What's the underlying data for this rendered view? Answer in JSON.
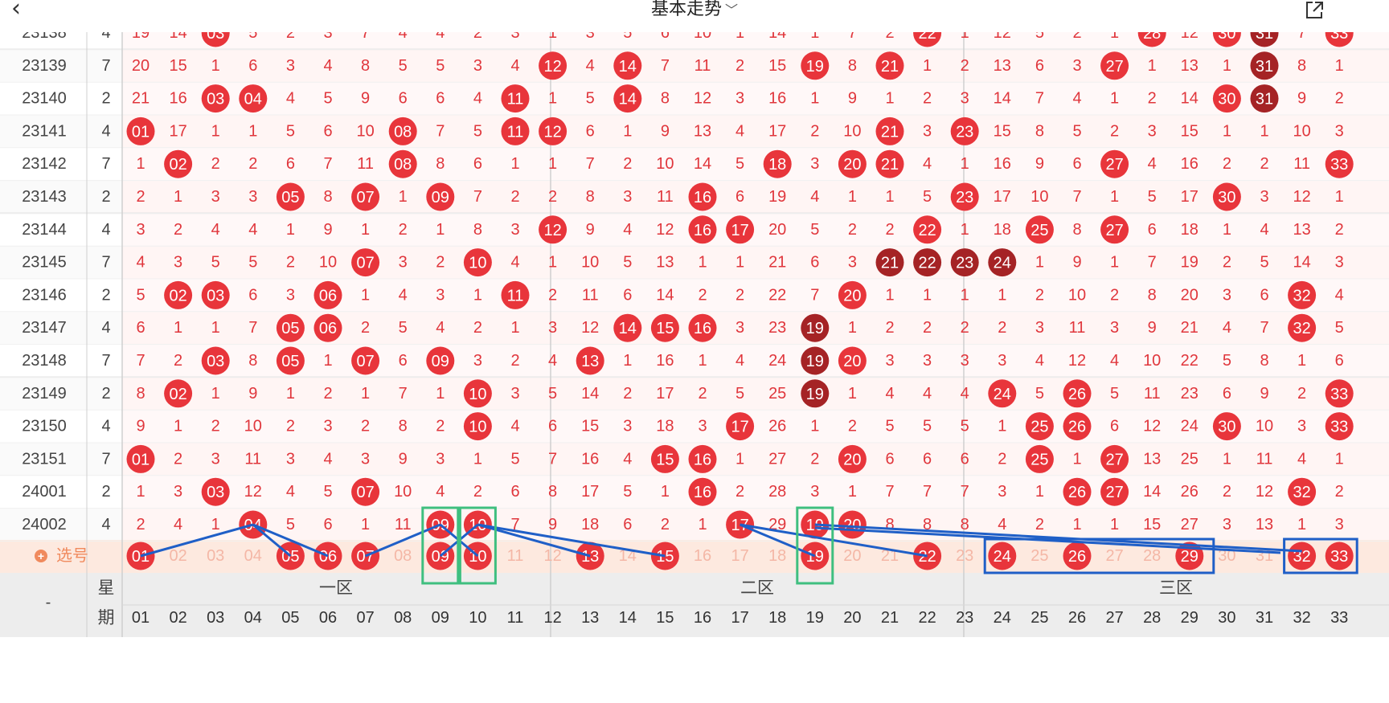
{
  "header": {
    "back_icon": "chevron-left-icon",
    "title": "基本走势",
    "title_dropdown_icon": "chevron-down-icon",
    "share_icon": "share-external-icon"
  },
  "issues": [
    "23138",
    "23139",
    "23140",
    "23141",
    "23142",
    "23143",
    "23144",
    "23145",
    "23146",
    "23147",
    "23148",
    "23149",
    "23150",
    "23151",
    "24001",
    "24002"
  ],
  "weekdays": [
    "4",
    "7",
    "2",
    "4",
    "7",
    "2",
    "4",
    "7",
    "2",
    "4",
    "7",
    "2",
    "4",
    "7",
    "2",
    "4"
  ],
  "cells": [
    [
      "19",
      "14",
      "03",
      "5",
      "2",
      "3",
      "7",
      "4",
      "4",
      "2",
      "3",
      "1",
      "3",
      "5",
      "6",
      "10",
      "1",
      "14",
      "1",
      "7",
      "2",
      "22",
      "1",
      "12",
      "5",
      "2",
      "1",
      "28",
      "12",
      "30",
      "31",
      "7",
      "33"
    ],
    [
      "20",
      "15",
      "1",
      "6",
      "3",
      "4",
      "8",
      "5",
      "5",
      "3",
      "4",
      "12",
      "4",
      "14",
      "7",
      "11",
      "2",
      "15",
      "19",
      "8",
      "21",
      "1",
      "2",
      "13",
      "6",
      "3",
      "27",
      "1",
      "13",
      "1",
      "31",
      "8",
      "1"
    ],
    [
      "21",
      "16",
      "03",
      "04",
      "4",
      "5",
      "9",
      "6",
      "6",
      "4",
      "11",
      "1",
      "5",
      "14",
      "8",
      "12",
      "3",
      "16",
      "1",
      "9",
      "1",
      "2",
      "3",
      "14",
      "7",
      "4",
      "1",
      "2",
      "14",
      "30",
      "31",
      "9",
      "2"
    ],
    [
      "01",
      "17",
      "1",
      "1",
      "5",
      "6",
      "10",
      "08",
      "7",
      "5",
      "11",
      "12",
      "6",
      "1",
      "9",
      "13",
      "4",
      "17",
      "2",
      "10",
      "21",
      "3",
      "23",
      "15",
      "8",
      "5",
      "2",
      "3",
      "15",
      "1",
      "1",
      "10",
      "3"
    ],
    [
      "1",
      "02",
      "2",
      "2",
      "6",
      "7",
      "11",
      "08",
      "8",
      "6",
      "1",
      "1",
      "7",
      "2",
      "10",
      "14",
      "5",
      "18",
      "3",
      "20",
      "21",
      "4",
      "1",
      "16",
      "9",
      "6",
      "27",
      "4",
      "16",
      "2",
      "2",
      "11",
      "33"
    ],
    [
      "2",
      "1",
      "3",
      "3",
      "05",
      "8",
      "07",
      "1",
      "09",
      "7",
      "2",
      "2",
      "8",
      "3",
      "11",
      "16",
      "6",
      "19",
      "4",
      "1",
      "1",
      "5",
      "23",
      "17",
      "10",
      "7",
      "1",
      "5",
      "17",
      "30",
      "3",
      "12",
      "1"
    ],
    [
      "3",
      "2",
      "4",
      "4",
      "1",
      "9",
      "1",
      "2",
      "1",
      "8",
      "3",
      "12",
      "9",
      "4",
      "12",
      "16",
      "17",
      "20",
      "5",
      "2",
      "2",
      "22",
      "1",
      "18",
      "25",
      "8",
      "27",
      "6",
      "18",
      "1",
      "4",
      "13",
      "2"
    ],
    [
      "4",
      "3",
      "5",
      "5",
      "2",
      "10",
      "07",
      "3",
      "2",
      "10",
      "4",
      "1",
      "10",
      "5",
      "13",
      "1",
      "1",
      "21",
      "6",
      "3",
      "21",
      "22",
      "23",
      "24",
      "1",
      "9",
      "1",
      "7",
      "19",
      "2",
      "5",
      "14",
      "3"
    ],
    [
      "5",
      "02",
      "03",
      "6",
      "3",
      "06",
      "1",
      "4",
      "3",
      "1",
      "11",
      "2",
      "11",
      "6",
      "14",
      "2",
      "2",
      "22",
      "7",
      "20",
      "1",
      "1",
      "1",
      "1",
      "2",
      "10",
      "2",
      "8",
      "20",
      "3",
      "6",
      "32",
      "4"
    ],
    [
      "6",
      "1",
      "1",
      "7",
      "05",
      "06",
      "2",
      "5",
      "4",
      "2",
      "1",
      "3",
      "12",
      "14",
      "15",
      "16",
      "3",
      "23",
      "19",
      "1",
      "2",
      "2",
      "2",
      "2",
      "3",
      "11",
      "3",
      "9",
      "21",
      "4",
      "7",
      "32",
      "5"
    ],
    [
      "7",
      "2",
      "03",
      "8",
      "05",
      "1",
      "07",
      "6",
      "09",
      "3",
      "2",
      "4",
      "13",
      "1",
      "16",
      "1",
      "4",
      "24",
      "19",
      "20",
      "3",
      "3",
      "3",
      "3",
      "4",
      "12",
      "4",
      "10",
      "22",
      "5",
      "8",
      "1",
      "6"
    ],
    [
      "8",
      "02",
      "1",
      "9",
      "1",
      "2",
      "1",
      "7",
      "1",
      "10",
      "3",
      "5",
      "14",
      "2",
      "17",
      "2",
      "5",
      "25",
      "19",
      "1",
      "4",
      "4",
      "4",
      "24",
      "5",
      "26",
      "5",
      "11",
      "23",
      "6",
      "9",
      "2",
      "33"
    ],
    [
      "9",
      "1",
      "2",
      "10",
      "2",
      "3",
      "2",
      "8",
      "2",
      "10",
      "4",
      "6",
      "15",
      "3",
      "18",
      "3",
      "17",
      "26",
      "1",
      "2",
      "5",
      "5",
      "5",
      "1",
      "25",
      "26",
      "6",
      "12",
      "24",
      "30",
      "10",
      "3",
      "33"
    ],
    [
      "01",
      "2",
      "3",
      "11",
      "3",
      "4",
      "3",
      "9",
      "3",
      "1",
      "5",
      "7",
      "16",
      "4",
      "15",
      "16",
      "1",
      "27",
      "2",
      "20",
      "6",
      "6",
      "6",
      "2",
      "25",
      "1",
      "27",
      "13",
      "25",
      "1",
      "11",
      "4",
      "1"
    ],
    [
      "1",
      "3",
      "03",
      "12",
      "4",
      "5",
      "07",
      "10",
      "4",
      "2",
      "6",
      "8",
      "17",
      "5",
      "1",
      "16",
      "2",
      "28",
      "3",
      "1",
      "7",
      "7",
      "7",
      "3",
      "1",
      "26",
      "27",
      "14",
      "26",
      "2",
      "12",
      "32",
      "2"
    ],
    [
      "2",
      "4",
      "1",
      "04",
      "5",
      "6",
      "1",
      "11",
      "09",
      "10",
      "7",
      "9",
      "18",
      "6",
      "2",
      "1",
      "17",
      "29",
      "19",
      "20",
      "8",
      "8",
      "8",
      "4",
      "2",
      "1",
      "1",
      "15",
      "27",
      "3",
      "13",
      "1",
      "3"
    ]
  ],
  "dark_balls": [
    [
      0,
      30
    ],
    [
      1,
      30
    ],
    [
      2,
      30
    ],
    [
      7,
      20
    ],
    [
      7,
      21
    ],
    [
      7,
      22
    ],
    [
      7,
      23
    ],
    [
      9,
      18
    ],
    [
      10,
      18
    ],
    [
      11,
      18
    ]
  ],
  "select_row": {
    "label": "选号",
    "add_icon": "plus-circle-icon",
    "numbers": [
      "01",
      "02",
      "03",
      "04",
      "05",
      "06",
      "07",
      "08",
      "09",
      "10",
      "11",
      "12",
      "13",
      "14",
      "15",
      "16",
      "17",
      "18",
      "19",
      "20",
      "21",
      "22",
      "23",
      "24",
      "25",
      "26",
      "27",
      "28",
      "29",
      "30",
      "31",
      "32",
      "33"
    ],
    "selected": [
      "01",
      "05",
      "06",
      "07",
      "09",
      "10",
      "13",
      "15",
      "19",
      "22",
      "24",
      "26",
      "29",
      "32",
      "33"
    ]
  },
  "footer": {
    "dash": "-",
    "weekday_label_top": "星",
    "weekday_label_bottom": "期",
    "zones": [
      "一区",
      "二区",
      "三区"
    ],
    "numbers": [
      "01",
      "02",
      "03",
      "04",
      "05",
      "06",
      "07",
      "08",
      "09",
      "10",
      "11",
      "12",
      "13",
      "14",
      "15",
      "16",
      "17",
      "18",
      "19",
      "20",
      "21",
      "22",
      "23",
      "24",
      "25",
      "26",
      "27",
      "28",
      "29",
      "30",
      "31",
      "32",
      "33"
    ]
  },
  "colors": {
    "red_ball": "#e8353b",
    "dark_ball": "#a52325",
    "cell_text": "#e0363c",
    "annotation_line": "#1f5fc7",
    "annotation_box_green": "#3fbf7f",
    "annotation_box_blue": "#1f5fc7"
  }
}
